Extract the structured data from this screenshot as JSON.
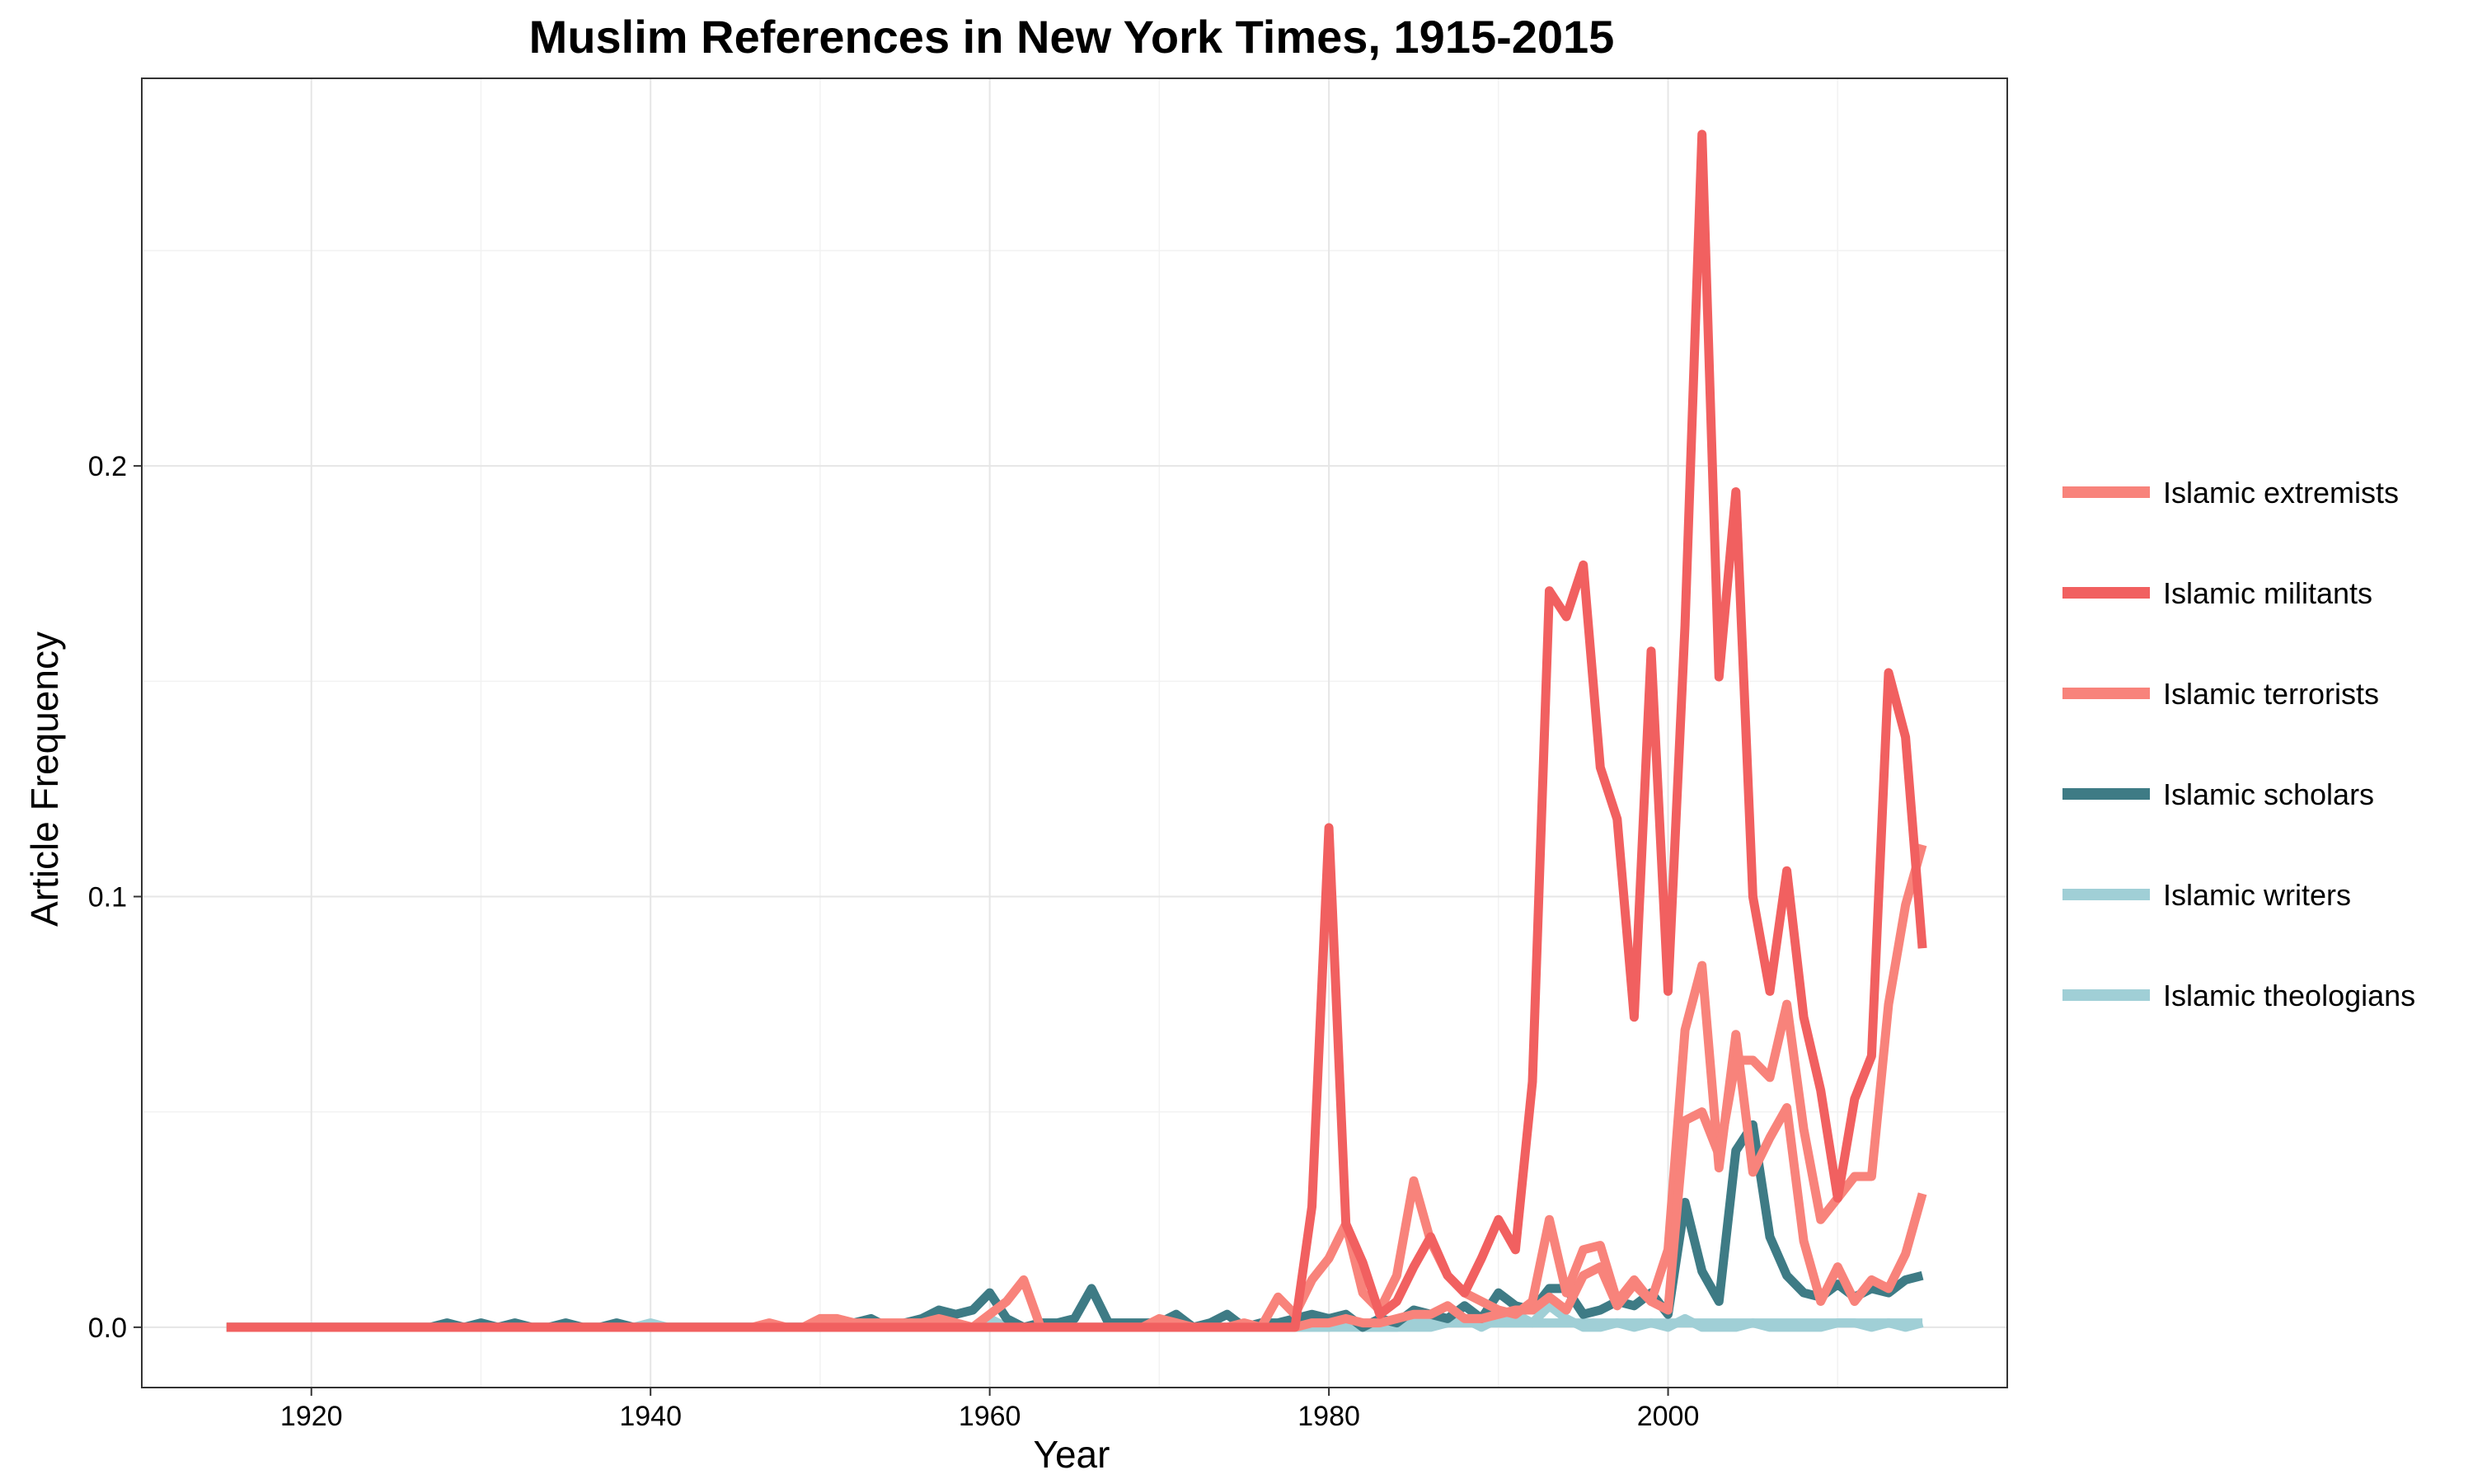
{
  "chart_data": {
    "type": "line",
    "title": "Muslim References in New York Times, 1915-2015",
    "xlabel": "Year",
    "ylabel": "Article Frequency",
    "xlim": [
      1910,
      2020
    ],
    "ylim": [
      -0.014,
      0.29
    ],
    "x_ticks": [
      1920,
      1940,
      1960,
      1980,
      2000
    ],
    "x_tick_labels": [
      "1920",
      "1940",
      "1960",
      "1980",
      "2000"
    ],
    "y_ticks": [
      0.0,
      0.1,
      0.2
    ],
    "y_tick_labels": [
      "0.0",
      "0.1",
      "0.2"
    ],
    "grid": true,
    "legend_position": "right",
    "background": "#ffffff",
    "x": [
      1915,
      1916,
      1917,
      1918,
      1919,
      1920,
      1921,
      1922,
      1923,
      1924,
      1925,
      1926,
      1927,
      1928,
      1929,
      1930,
      1931,
      1932,
      1933,
      1934,
      1935,
      1936,
      1937,
      1938,
      1939,
      1940,
      1941,
      1942,
      1943,
      1944,
      1945,
      1946,
      1947,
      1948,
      1949,
      1950,
      1951,
      1952,
      1953,
      1954,
      1955,
      1956,
      1957,
      1958,
      1959,
      1960,
      1961,
      1962,
      1963,
      1964,
      1965,
      1966,
      1967,
      1968,
      1969,
      1970,
      1971,
      1972,
      1973,
      1974,
      1975,
      1976,
      1977,
      1978,
      1979,
      1980,
      1981,
      1982,
      1983,
      1984,
      1985,
      1986,
      1987,
      1988,
      1989,
      1990,
      1991,
      1992,
      1993,
      1994,
      1995,
      1996,
      1997,
      1998,
      1999,
      2000,
      2001,
      2002,
      2003,
      2004,
      2005,
      2006,
      2007,
      2008,
      2009,
      2010,
      2011,
      2012,
      2013,
      2014,
      2015
    ],
    "series": [
      {
        "name": "Islamic extremists",
        "color": "#F8837B",
        "values": [
          0,
          0,
          0,
          0,
          0,
          0,
          0,
          0,
          0,
          0,
          0,
          0,
          0,
          0,
          0,
          0,
          0,
          0,
          0,
          0,
          0,
          0,
          0,
          0,
          0,
          0,
          0,
          0,
          0,
          0,
          0,
          0,
          0,
          0,
          0,
          0,
          0,
          0,
          0,
          0,
          0,
          0,
          0,
          0,
          0,
          0,
          0,
          0,
          0,
          0,
          0,
          0,
          0,
          0,
          0,
          0,
          0,
          0,
          0,
          0,
          0,
          0,
          0,
          0,
          0.001,
          0.001,
          0.002,
          0.001,
          0.001,
          0.002,
          0.003,
          0.003,
          0.005,
          0.002,
          0.002,
          0.003,
          0.004,
          0.004,
          0.007,
          0.004,
          0.012,
          0.014,
          0.005,
          0.01,
          0.006,
          0.004,
          0.048,
          0.05,
          0.04,
          0.062,
          0.062,
          0.058,
          0.075,
          0.046,
          0.025,
          0.03,
          0.035,
          0.035,
          0.075,
          0.098,
          0.112
        ]
      },
      {
        "name": "Islamic militants",
        "color": "#F16060",
        "values": [
          0,
          0,
          0,
          0,
          0,
          0,
          0,
          0,
          0,
          0,
          0,
          0,
          0,
          0,
          0,
          0,
          0,
          0,
          0,
          0,
          0,
          0,
          0,
          0,
          0,
          0,
          0,
          0,
          0,
          0,
          0,
          0,
          0,
          0,
          0,
          0,
          0,
          0,
          0,
          0,
          0,
          0,
          0,
          0,
          0,
          0,
          0,
          0,
          0,
          0,
          0,
          0,
          0,
          0,
          0,
          0,
          0,
          0,
          0,
          0,
          0,
          0,
          0,
          0,
          0.028,
          0.116,
          0.024,
          0.015,
          0.003,
          0.006,
          0.014,
          0.021,
          0.012,
          0.008,
          0.016,
          0.025,
          0.018,
          0.057,
          0.171,
          0.165,
          0.177,
          0.13,
          0.118,
          0.072,
          0.157,
          0.078,
          0.163,
          0.277,
          0.151,
          0.194,
          0.1,
          0.078,
          0.106,
          0.072,
          0.055,
          0.03,
          0.053,
          0.063,
          0.152,
          0.137,
          0.088
        ]
      },
      {
        "name": "Islamic terrorists",
        "color": "#F8837B",
        "values": [
          0,
          0,
          0,
          0,
          0,
          0,
          0,
          0,
          0,
          0,
          0,
          0,
          0,
          0,
          0,
          0,
          0,
          0,
          0,
          0,
          0,
          0,
          0,
          0,
          0,
          0,
          0,
          0,
          0,
          0,
          0,
          0,
          0.001,
          0,
          0,
          0.002,
          0.002,
          0.001,
          0.001,
          0.001,
          0.001,
          0.001,
          0.002,
          0.001,
          0,
          0.003,
          0.006,
          0.011,
          0,
          0,
          0,
          0,
          0,
          0,
          0,
          0.002,
          0.001,
          0,
          0,
          0,
          0.001,
          0,
          0.007,
          0.003,
          0.011,
          0.016,
          0.024,
          0.008,
          0.004,
          0.012,
          0.034,
          0.02,
          0.012,
          0.008,
          0.006,
          0.004,
          0.003,
          0.006,
          0.025,
          0.008,
          0.018,
          0.019,
          0.006,
          0.011,
          0.006,
          0.018,
          0.069,
          0.084,
          0.037,
          0.068,
          0.036,
          0.044,
          0.051,
          0.02,
          0.006,
          0.014,
          0.006,
          0.011,
          0.009,
          0.017,
          0.031
        ]
      },
      {
        "name": "Islamic scholars",
        "color": "#3E7B85",
        "values": [
          0,
          0,
          0,
          0,
          0,
          0,
          0,
          0,
          0,
          0,
          0,
          0,
          0,
          0.001,
          0,
          0.001,
          0,
          0.001,
          0,
          0,
          0.001,
          0,
          0,
          0.001,
          0,
          0,
          0,
          0,
          0,
          0,
          0,
          0,
          0,
          0,
          0,
          0,
          0.001,
          0.001,
          0.002,
          0,
          0.001,
          0.002,
          0.004,
          0.003,
          0.004,
          0.008,
          0.002,
          0,
          0.001,
          0.001,
          0.002,
          0.009,
          0.001,
          0.001,
          0.001,
          0.001,
          0.003,
          0,
          0.001,
          0.003,
          0,
          0.001,
          0.001,
          0.002,
          0.003,
          0.002,
          0.003,
          0,
          0.002,
          0.001,
          0.004,
          0.003,
          0.002,
          0.005,
          0.002,
          0.008,
          0.005,
          0.004,
          0.009,
          0.009,
          0.003,
          0.004,
          0.006,
          0.005,
          0.008,
          0.003,
          0.029,
          0.013,
          0.006,
          0.041,
          0.047,
          0.021,
          0.012,
          0.008,
          0.007,
          0.01,
          0.007,
          0.009,
          0.008,
          0.011,
          0.012
        ]
      },
      {
        "name": "Islamic writers",
        "color": "#A0CFD6",
        "values": [
          0,
          0,
          0,
          0,
          0,
          0,
          0,
          0,
          0,
          0,
          0,
          0,
          0,
          0,
          0,
          0,
          0,
          0,
          0,
          0,
          0,
          0,
          0,
          0,
          0,
          0,
          0,
          0,
          0,
          0,
          0,
          0,
          0,
          0,
          0,
          0,
          0,
          0,
          0,
          0,
          0,
          0,
          0,
          0,
          0,
          0,
          0,
          0,
          0,
          0,
          0,
          0,
          0,
          0,
          0,
          0,
          0,
          0,
          0,
          0,
          0,
          0,
          0,
          0,
          0,
          0,
          0,
          0,
          0,
          0,
          0,
          0,
          0.001,
          0.001,
          0.001,
          0.001,
          0.001,
          0.001,
          0.001,
          0.001,
          0.001,
          0.001,
          0.001,
          0.001,
          0.001,
          0.001,
          0.001,
          0.001,
          0.001,
          0.001,
          0.001,
          0.001,
          0.001,
          0.001,
          0.001,
          0.001,
          0.001,
          0.001,
          0.001,
          0.001,
          0.001
        ]
      },
      {
        "name": "Islamic theologians",
        "color": "#A0CFD6",
        "values": [
          0,
          0,
          0,
          0,
          0,
          0,
          0,
          0,
          0,
          0,
          0,
          0,
          0,
          0,
          0,
          0,
          0,
          0,
          0,
          0,
          0,
          0,
          0,
          0,
          0,
          0.001,
          0,
          0,
          0,
          0,
          0,
          0,
          0,
          0,
          0,
          0,
          0,
          0,
          0,
          0,
          0,
          0,
          0,
          0,
          0,
          0.002,
          0,
          0,
          0,
          0,
          0,
          0,
          0,
          0,
          0,
          0,
          0,
          0,
          0,
          0,
          0,
          0,
          0,
          0,
          0,
          0,
          0.001,
          0,
          0,
          0,
          0.001,
          0.001,
          0.001,
          0.002,
          0,
          0.002,
          0.003,
          0.001,
          0.005,
          0.002,
          0,
          0,
          0.001,
          0,
          0.001,
          0,
          0.002,
          0,
          0,
          0,
          0.001,
          0,
          0,
          0,
          0,
          0.001,
          0.001,
          0,
          0.001,
          0,
          0.001
        ]
      }
    ]
  }
}
